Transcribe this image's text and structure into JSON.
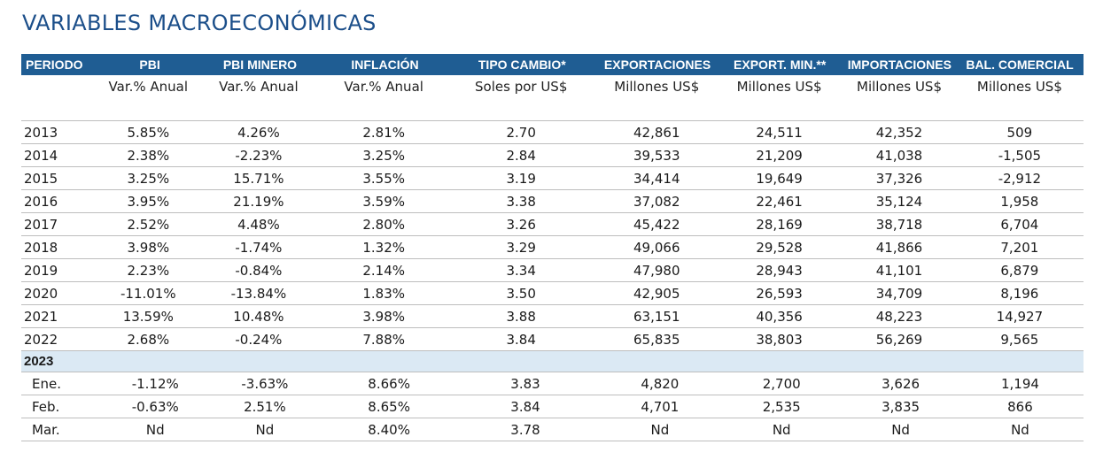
{
  "title": "VARIABLES MACROECONÓMICAS",
  "headers": [
    "PERIODO",
    "PBI",
    "PBI MINERO",
    "INFLACIÓN",
    "TIPO CAMBIO*",
    "EXPORTACIONES",
    "EXPORT. MIN.**",
    "IMPORTACIONES",
    "BAL. COMERCIAL"
  ],
  "units": [
    "",
    "Var.% Anual",
    "Var.% Anual",
    "Var.% Anual",
    "Soles por US$",
    "Millones US$",
    "Millones US$",
    "Millones US$",
    "Millones US$"
  ],
  "annual_rows": [
    [
      "2013",
      "5.85%",
      "4.26%",
      "2.81%",
      "2.70",
      "42,861",
      "24,511",
      "42,352",
      "509"
    ],
    [
      "2014",
      "2.38%",
      "-2.23%",
      "3.25%",
      "2.84",
      "39,533",
      "21,209",
      "41,038",
      "-1,505"
    ],
    [
      "2015",
      "3.25%",
      "15.71%",
      "3.55%",
      "3.19",
      "34,414",
      "19,649",
      "37,326",
      "-2,912"
    ],
    [
      "2016",
      "3.95%",
      "21.19%",
      "3.59%",
      "3.38",
      "37,082",
      "22,461",
      "35,124",
      "1,958"
    ],
    [
      "2017",
      "2.52%",
      "4.48%",
      "2.80%",
      "3.26",
      "45,422",
      "28,169",
      "38,718",
      "6,704"
    ],
    [
      "2018",
      "3.98%",
      "-1.74%",
      "1.32%",
      "3.29",
      "49,066",
      "29,528",
      "41,866",
      "7,201"
    ],
    [
      "2019",
      "2.23%",
      "-0.84%",
      "2.14%",
      "3.34",
      "47,980",
      "28,943",
      "41,101",
      "6,879"
    ],
    [
      "2020",
      "-11.01%",
      "-13.84%",
      "1.83%",
      "3.50",
      "42,905",
      "26,593",
      "34,709",
      "8,196"
    ],
    [
      "2021",
      "13.59%",
      "10.48%",
      "3.98%",
      "3.88",
      "63,151",
      "40,356",
      "48,223",
      "14,927"
    ],
    [
      "2022",
      "2.68%",
      "-0.24%",
      "7.88%",
      "3.84",
      "65,835",
      "38,803",
      "56,269",
      "9,565"
    ]
  ],
  "year_band": "2023",
  "monthly_rows": [
    [
      "Ene.",
      "-1.12%",
      "-3.63%",
      "8.66%",
      "3.83",
      "4,820",
      "2,700",
      "3,626",
      "1,194"
    ],
    [
      "Feb.",
      "-0.63%",
      "2.51%",
      "8.65%",
      "3.84",
      "4,701",
      "2,535",
      "3,835",
      "866"
    ],
    [
      "Mar.",
      "Nd",
      "Nd",
      "8.40%",
      "3.78",
      "Nd",
      "Nd",
      "Nd",
      "Nd"
    ]
  ]
}
